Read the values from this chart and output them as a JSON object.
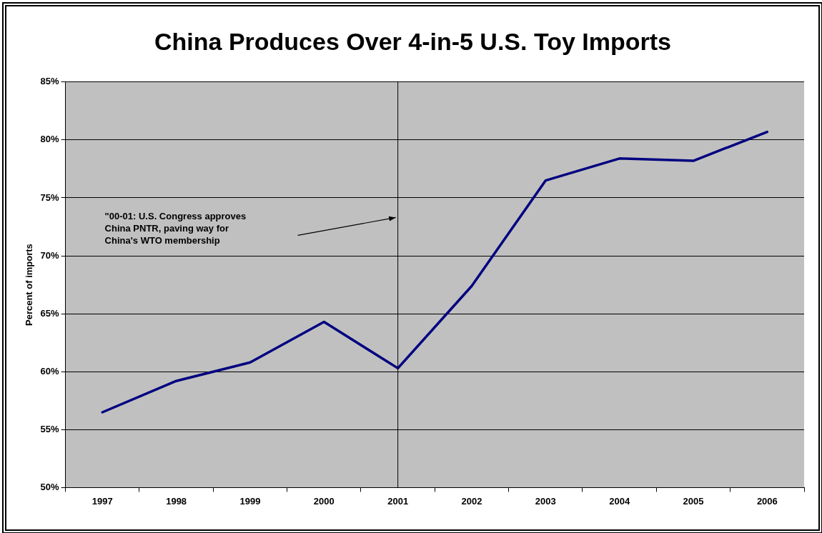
{
  "chart_data": {
    "type": "line",
    "title": "China Produces Over 4-in-5 U.S. Toy Imports",
    "ylabel": "Percent of imports",
    "categories": [
      "1997",
      "1998",
      "1999",
      "2000",
      "2001",
      "2002",
      "2003",
      "2004",
      "2005",
      "2006"
    ],
    "series": [
      {
        "color": "#000080",
        "values": [
          56.5,
          59.2,
          60.8,
          64.3,
          60.3,
          67.4,
          76.5,
          78.4,
          78.2,
          80.7
        ]
      }
    ],
    "ylim": [
      50,
      85
    ],
    "yticks": [
      {
        "value": 50,
        "label": "50%"
      },
      {
        "value": 55,
        "label": "55%"
      },
      {
        "value": 60,
        "label": "60%"
      },
      {
        "value": 65,
        "label": "65%"
      },
      {
        "value": 70,
        "label": "70%"
      },
      {
        "value": 75,
        "label": "75%"
      },
      {
        "value": 80,
        "label": "80%"
      },
      {
        "value": 85,
        "label": "85%"
      }
    ],
    "ref_lines": [
      {
        "axis": "x",
        "value": "2001",
        "color": "#000000"
      }
    ],
    "annotations": [
      "\"00-01: U.S. Congress approves\nChina PNTR, paving way for\nChina's WTO membership"
    ],
    "grid": "y",
    "legend": false,
    "marker": "none",
    "line_style": "solid"
  }
}
